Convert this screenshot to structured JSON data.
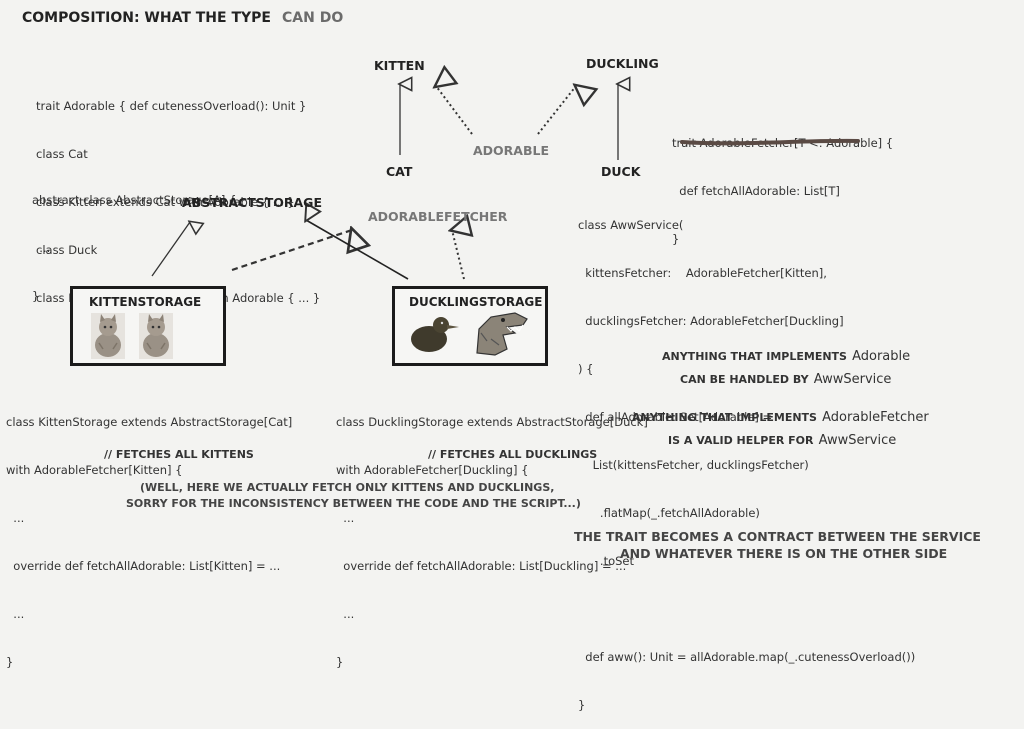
{
  "title": {
    "main": "COMPOSITION: WHAT THE TYPE",
    "accent": "CAN DO"
  },
  "code_top_left": [
    "trait Adorable { def cutenessOverload(): Unit }",
    "class Cat",
    "class Kitten extends Cat with Adorable { ... }",
    "class Duck",
    "class Duckling extends Duck with Adorable { ... }"
  ],
  "code_abstract": [
    "abstract class AbstractStorage[A] {",
    "  ...",
    "}"
  ],
  "code_fetcher_trait": [
    "trait AdorableFetcher[T <: Adorable] {",
    "  def fetchAllAdorable: List[T]",
    "}"
  ],
  "code_service": [
    "class AwwService(",
    "  kittensFetcher:    AdorableFetcher[Kitten],",
    "  ducklingsFetcher: AdorableFetcher[Duckling]",
    ") {",
    "  def allAdorable: Set[Adorable] =",
    "    List(kittensFetcher, ducklingsFetcher)",
    "      .flatMap(_.fetchAllAdorable)",
    "      .toSet",
    "",
    "  def aww(): Unit = allAdorable.map(_.cutenessOverload())",
    "}"
  ],
  "code_kitten_storage": [
    "class KittenStorage extends AbstractStorage[Cat]",
    "with AdorableFetcher[Kitten] {",
    "  ...",
    "  override def fetchAllAdorable: List[Kitten] = ...",
    "  ...",
    "}"
  ],
  "code_duckling_storage": [
    "class DucklingStorage extends AbstractStorage[Duck]",
    "with AdorableFetcher[Duckling] {",
    "  ...",
    "  override def fetchAllAdorable: List[Duckling] = ...",
    "  ...",
    "}"
  ],
  "comments": {
    "kittens": "// FETCHES ALL KITTENS",
    "ducklings": "// FETCHES ALL DUCKLINGS"
  },
  "nodes": {
    "kitten": "KITTEN",
    "duckling": "DUCKLING",
    "cat": "CAT",
    "adorable": "ADORABLE",
    "duck": "DUCK",
    "abstract_storage": "ABSTRACTSTORAGE",
    "adorable_fetcher": "ADORABLEFETCHER",
    "kitten_storage": "KITTENSTORAGE",
    "duckling_storage": "DUCKLINGSTORAGE"
  },
  "notes": {
    "adorable_prefix": "ANYTHING THAT IMPLEMENTS",
    "adorable_type": "Adorable",
    "adorable_suffix": "CAN BE HANDLED BY",
    "adorable_service": "AwwService",
    "fetcher_prefix": "ANYTHING THAT IMPLEMENTS",
    "fetcher_type": "AdorableFetcher",
    "fetcher_suffix": "IS A VALID HELPER FOR",
    "fetcher_service": "AwwService"
  },
  "disclaimer": [
    "(WELL, HERE WE ACTUALLY FETCH ONLY KITTENS AND DUCKLINGS,",
    "SORRY FOR THE INCONSISTENCY BETWEEN THE CODE AND THE SCRIPT...)"
  ],
  "conclusion": [
    "THE TRAIT BECOMES A CONTRACT BETWEEN THE SERVICE",
    "AND WHATEVER THERE IS ON THE OTHER SIDE"
  ],
  "colors": {
    "underline": "#5a4a44",
    "arrow": "#333333",
    "box_border": "#1b1b1b"
  }
}
